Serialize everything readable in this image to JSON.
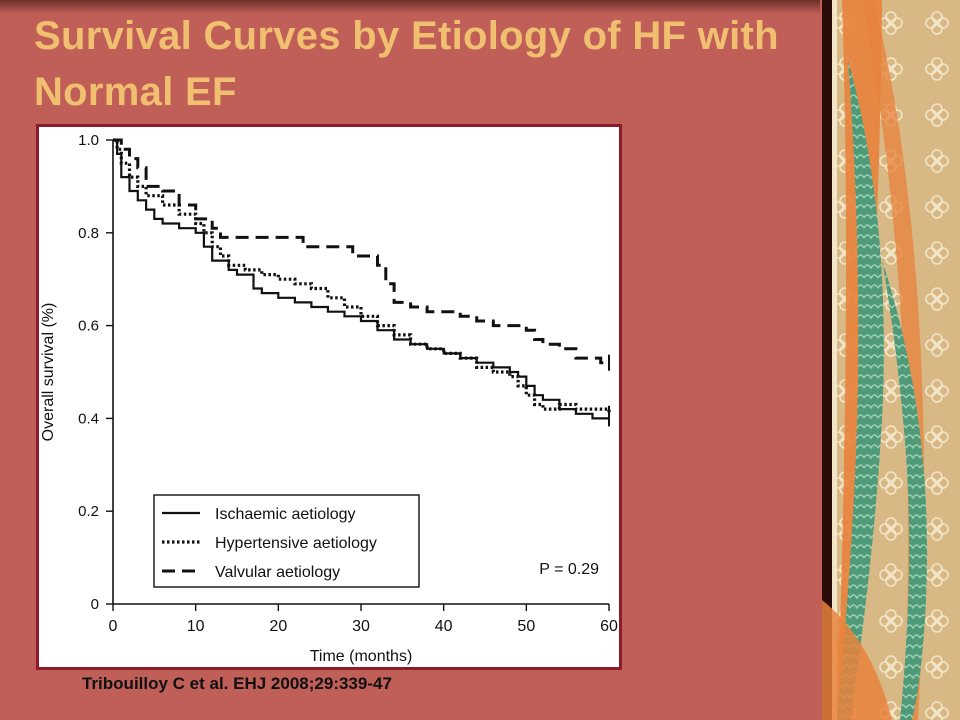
{
  "slide": {
    "title": "Survival Curves by Etiology of HF with Normal EF",
    "citation": "Tribouilloy C et al. EHJ 2008;29:339-47"
  },
  "colors": {
    "background": "#c05e58",
    "title": "#f0c070",
    "frame": "#8c1c2c",
    "decor_tan": "#d8b884",
    "decor_green": "#4f9a78",
    "decor_orange": "#e8823c"
  },
  "chart_data": {
    "type": "line",
    "title": "",
    "xlabel": "Time (months)",
    "ylabel": "Overall survival (%)",
    "xlim": [
      0,
      60
    ],
    "ylim": [
      0,
      1.0
    ],
    "x_ticks": [
      0,
      10,
      20,
      30,
      40,
      50,
      60
    ],
    "y_ticks": [
      0,
      0.2,
      0.4,
      0.6,
      0.8,
      1.0
    ],
    "x_tick_labels": [
      "0",
      "10",
      "20",
      "30",
      "40",
      "50",
      "60"
    ],
    "y_tick_labels": [
      "0",
      "0.2",
      "0.4",
      "0.6",
      "0.8",
      "1.0"
    ],
    "grid": false,
    "legend_position": "bottom-left",
    "annotation": "P = 0.29",
    "series": [
      {
        "name": "Ischaemic aetiology",
        "style": "solid",
        "step_points": [
          [
            0,
            1.0
          ],
          [
            0.5,
            0.97
          ],
          [
            1,
            0.92
          ],
          [
            2,
            0.89
          ],
          [
            3,
            0.87
          ],
          [
            4,
            0.85
          ],
          [
            5,
            0.83
          ],
          [
            6,
            0.82
          ],
          [
            8,
            0.81
          ],
          [
            10,
            0.8
          ],
          [
            11,
            0.77
          ],
          [
            12,
            0.74
          ],
          [
            14,
            0.72
          ],
          [
            15,
            0.71
          ],
          [
            17,
            0.68
          ],
          [
            18,
            0.67
          ],
          [
            20,
            0.66
          ],
          [
            22,
            0.65
          ],
          [
            24,
            0.64
          ],
          [
            26,
            0.63
          ],
          [
            28,
            0.62
          ],
          [
            30,
            0.61
          ],
          [
            32,
            0.59
          ],
          [
            34,
            0.57
          ],
          [
            36,
            0.56
          ],
          [
            38,
            0.55
          ],
          [
            40,
            0.54
          ],
          [
            42,
            0.53
          ],
          [
            44,
            0.52
          ],
          [
            46,
            0.51
          ],
          [
            48,
            0.5
          ],
          [
            49,
            0.49
          ],
          [
            50,
            0.47
          ],
          [
            51,
            0.45
          ],
          [
            52,
            0.44
          ],
          [
            54,
            0.42
          ],
          [
            56,
            0.41
          ],
          [
            58,
            0.4
          ],
          [
            60,
            0.4
          ]
        ]
      },
      {
        "name": "Hypertensive aetiology",
        "style": "dotted",
        "step_points": [
          [
            0,
            1.0
          ],
          [
            0.5,
            0.98
          ],
          [
            1,
            0.95
          ],
          [
            2,
            0.92
          ],
          [
            3,
            0.9
          ],
          [
            4,
            0.88
          ],
          [
            6,
            0.86
          ],
          [
            8,
            0.84
          ],
          [
            10,
            0.82
          ],
          [
            11,
            0.8
          ],
          [
            12,
            0.77
          ],
          [
            13,
            0.75
          ],
          [
            14,
            0.73
          ],
          [
            16,
            0.72
          ],
          [
            18,
            0.71
          ],
          [
            20,
            0.7
          ],
          [
            22,
            0.69
          ],
          [
            24,
            0.68
          ],
          [
            26,
            0.66
          ],
          [
            28,
            0.64
          ],
          [
            30,
            0.62
          ],
          [
            32,
            0.6
          ],
          [
            34,
            0.58
          ],
          [
            36,
            0.56
          ],
          [
            38,
            0.55
          ],
          [
            40,
            0.54
          ],
          [
            42,
            0.53
          ],
          [
            44,
            0.51
          ],
          [
            46,
            0.5
          ],
          [
            48,
            0.49
          ],
          [
            49,
            0.47
          ],
          [
            50,
            0.45
          ],
          [
            51,
            0.43
          ],
          [
            52,
            0.42
          ],
          [
            54,
            0.43
          ],
          [
            56,
            0.42
          ],
          [
            58,
            0.42
          ],
          [
            60,
            0.41
          ]
        ]
      },
      {
        "name": "Valvular aetiology",
        "style": "dashed",
        "step_points": [
          [
            0,
            1.0
          ],
          [
            1,
            0.98
          ],
          [
            2,
            0.96
          ],
          [
            3,
            0.94
          ],
          [
            4,
            0.9
          ],
          [
            6,
            0.89
          ],
          [
            8,
            0.86
          ],
          [
            10,
            0.83
          ],
          [
            12,
            0.81
          ],
          [
            13,
            0.79
          ],
          [
            18,
            0.79
          ],
          [
            19,
            0.79
          ],
          [
            23,
            0.77
          ],
          [
            29,
            0.75
          ],
          [
            31,
            0.75
          ],
          [
            32,
            0.73
          ],
          [
            33,
            0.69
          ],
          [
            34,
            0.65
          ],
          [
            36,
            0.64
          ],
          [
            38,
            0.63
          ],
          [
            42,
            0.62
          ],
          [
            44,
            0.61
          ],
          [
            46,
            0.6
          ],
          [
            50,
            0.59
          ],
          [
            51,
            0.57
          ],
          [
            52,
            0.56
          ],
          [
            54,
            0.55
          ],
          [
            56,
            0.53
          ],
          [
            58,
            0.53
          ],
          [
            59,
            0.52
          ],
          [
            60,
            0.52
          ]
        ]
      }
    ]
  }
}
